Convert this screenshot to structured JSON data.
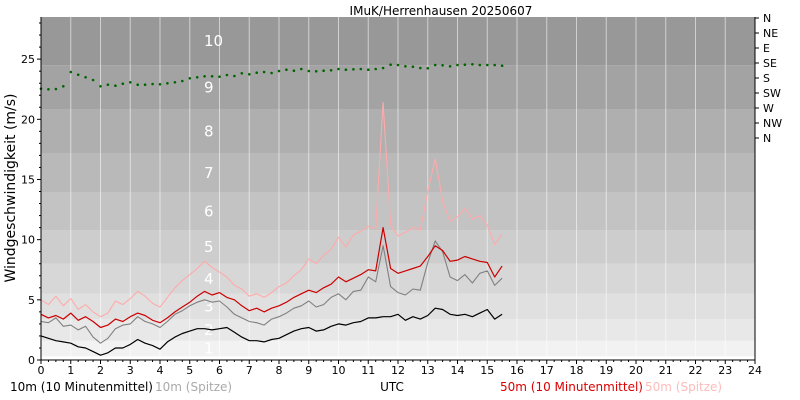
{
  "chart_data": {
    "type": "line",
    "title": "IMuK/Herrenhausen 20250607",
    "xlabel": "UTC",
    "ylabel": "Windgeschwindigkeit (m/s)",
    "xlim": [
      0,
      24
    ],
    "ylim": [
      0,
      28.5
    ],
    "x_ticks": [
      "0",
      "1",
      "2",
      "3",
      "4",
      "5",
      "6",
      "7",
      "8",
      "9",
      "10",
      "11",
      "12",
      "13",
      "14",
      "15",
      "16",
      "17",
      "18",
      "19",
      "20",
      "21",
      "22",
      "23",
      "24"
    ],
    "y_ticks": [
      "0",
      "5",
      "10",
      "15",
      "20",
      "25"
    ],
    "direction_labels": [
      "N",
      "NE",
      "E",
      "SE",
      "S",
      "SW",
      "W",
      "NW",
      "N"
    ],
    "beaufort_bands": [
      {
        "label": "",
        "min": 0,
        "max": 0.3,
        "color": "#ffffff"
      },
      {
        "label": "1",
        "min": 0.3,
        "max": 1.6,
        "color": "#f2f2f2"
      },
      {
        "label": "2",
        "min": 1.6,
        "max": 3.4,
        "color": "#e8e8e8"
      },
      {
        "label": "3",
        "min": 3.4,
        "max": 5.5,
        "color": "#e0e0e0"
      },
      {
        "label": "4",
        "min": 5.5,
        "max": 8.0,
        "color": "#d7d7d7"
      },
      {
        "label": "5",
        "min": 8.0,
        "max": 10.8,
        "color": "#cdcdcd"
      },
      {
        "label": "6",
        "min": 10.8,
        "max": 13.9,
        "color": "#c3c3c3"
      },
      {
        "label": "7",
        "min": 13.9,
        "max": 17.2,
        "color": "#b9b9b9"
      },
      {
        "label": "8",
        "min": 17.2,
        "max": 20.8,
        "color": "#afafaf"
      },
      {
        "label": "9",
        "min": 20.8,
        "max": 24.5,
        "color": "#a3a3a3"
      },
      {
        "label": "10",
        "min": 24.5,
        "max": 28.5,
        "color": "#989898"
      }
    ],
    "x": [
      0,
      0.25,
      0.5,
      0.75,
      1,
      1.25,
      1.5,
      1.75,
      2,
      2.25,
      2.5,
      2.75,
      3,
      3.25,
      3.5,
      3.75,
      4,
      4.25,
      4.5,
      4.75,
      5,
      5.25,
      5.5,
      5.75,
      6,
      6.25,
      6.5,
      6.75,
      7,
      7.25,
      7.5,
      7.75,
      8,
      8.25,
      8.5,
      8.75,
      9,
      9.25,
      9.5,
      9.75,
      10,
      10.25,
      10.5,
      10.75,
      11,
      11.25,
      11.5,
      11.75,
      12,
      12.25,
      12.5,
      12.75,
      13,
      13.25,
      13.5,
      13.75,
      14,
      14.25,
      14.5,
      14.75,
      15,
      15.25,
      15.5
    ],
    "series": [
      {
        "name": "10m (10 Minutenmittel)",
        "color": "#000000",
        "values": [
          2.0,
          1.8,
          1.6,
          1.5,
          1.4,
          1.1,
          1.0,
          0.7,
          0.4,
          0.6,
          1.0,
          1.0,
          1.3,
          1.7,
          1.4,
          1.2,
          0.9,
          1.5,
          1.9,
          2.2,
          2.4,
          2.6,
          2.6,
          2.5,
          2.6,
          2.7,
          2.3,
          1.9,
          1.6,
          1.6,
          1.5,
          1.7,
          1.8,
          2.1,
          2.4,
          2.6,
          2.7,
          2.4,
          2.5,
          2.8,
          3.0,
          2.9,
          3.1,
          3.2,
          3.5,
          3.5,
          3.6,
          3.6,
          3.8,
          3.3,
          3.6,
          3.4,
          3.7,
          4.3,
          4.2,
          3.8,
          3.7,
          3.8,
          3.6,
          3.9,
          4.2,
          3.4,
          3.8
        ]
      },
      {
        "name": "10m (Spitze)",
        "color": "#808080",
        "values": [
          3.2,
          3.1,
          3.5,
          2.8,
          2.9,
          2.5,
          2.8,
          1.9,
          1.4,
          1.8,
          2.6,
          2.9,
          3.0,
          3.6,
          3.2,
          3.0,
          2.7,
          3.2,
          3.8,
          4.1,
          4.5,
          4.8,
          5.0,
          4.8,
          4.9,
          4.4,
          3.8,
          3.5,
          3.2,
          3.1,
          2.9,
          3.4,
          3.6,
          3.9,
          4.3,
          4.5,
          4.9,
          4.4,
          4.6,
          5.2,
          5.5,
          5.0,
          5.7,
          5.8,
          6.9,
          6.5,
          9.5,
          6.1,
          5.6,
          5.4,
          5.9,
          5.8,
          8.1,
          9.9,
          9.0,
          6.9,
          6.6,
          7.1,
          6.4,
          7.2,
          7.4,
          6.2,
          6.8
        ]
      },
      {
        "name": "50m (10 Minutenmittel)",
        "color": "#cc0000",
        "values": [
          3.8,
          3.5,
          3.7,
          3.4,
          3.9,
          3.3,
          3.6,
          3.2,
          2.7,
          2.9,
          3.4,
          3.2,
          3.6,
          3.9,
          3.7,
          3.3,
          3.1,
          3.5,
          4.0,
          4.4,
          4.8,
          5.3,
          5.7,
          5.4,
          5.6,
          5.2,
          5.0,
          4.5,
          4.1,
          4.3,
          4.0,
          4.3,
          4.5,
          4.8,
          5.2,
          5.5,
          5.8,
          5.6,
          6.0,
          6.3,
          6.9,
          6.5,
          6.8,
          7.1,
          7.5,
          7.4,
          11.0,
          7.6,
          7.2,
          7.4,
          7.6,
          7.8,
          8.6,
          9.5,
          9.1,
          8.2,
          8.3,
          8.6,
          8.4,
          8.2,
          8.1,
          6.9,
          7.8
        ]
      },
      {
        "name": "50m (Spitze)",
        "color": "#ffaaaa",
        "values": [
          5.0,
          4.6,
          5.3,
          4.5,
          5.1,
          4.2,
          4.6,
          4.0,
          3.6,
          3.9,
          4.9,
          4.6,
          5.1,
          5.7,
          5.3,
          4.7,
          4.4,
          5.2,
          6.0,
          6.6,
          7.1,
          7.6,
          8.2,
          7.7,
          7.3,
          6.9,
          6.2,
          5.9,
          5.3,
          5.5,
          5.2,
          5.6,
          6.1,
          6.4,
          7.0,
          7.5,
          8.4,
          8.0,
          8.7,
          9.2,
          10.2,
          9.4,
          10.4,
          10.7,
          11.1,
          10.9,
          21.4,
          11.2,
          10.3,
          10.6,
          11.0,
          10.8,
          14.0,
          16.7,
          13.2,
          11.5,
          11.9,
          12.6,
          11.7,
          12.0,
          11.2,
          9.6,
          10.5
        ]
      },
      {
        "name": "Windrichtung",
        "color": "#006400",
        "unit": "degrees",
        "values": [
          212,
          214,
          213,
          205,
          162,
          170,
          178,
          186,
          205,
          200,
          203,
          197,
          193,
          200,
          200,
          198,
          199,
          196,
          193,
          189,
          181,
          178,
          175,
          175,
          176,
          171,
          174,
          166,
          169,
          164,
          162,
          165,
          159,
          155,
          158,
          153,
          159,
          160,
          158,
          157,
          153,
          155,
          154,
          153,
          155,
          153,
          150,
          140,
          141,
          145,
          146,
          150,
          151,
          141,
          142,
          145,
          141,
          140,
          139,
          141,
          141,
          141,
          143
        ]
      }
    ]
  },
  "legend": {
    "items": [
      {
        "label": "10m (10 Minutenmittel)",
        "color": "#000000"
      },
      {
        "label": "10m (Spitze)",
        "color": "#aaaaaa"
      },
      {
        "label": "50m (10 Minutenmittel)",
        "color": "#dd0000"
      },
      {
        "label": "50m (Spitze)",
        "color": "#ffbbbb"
      }
    ]
  }
}
